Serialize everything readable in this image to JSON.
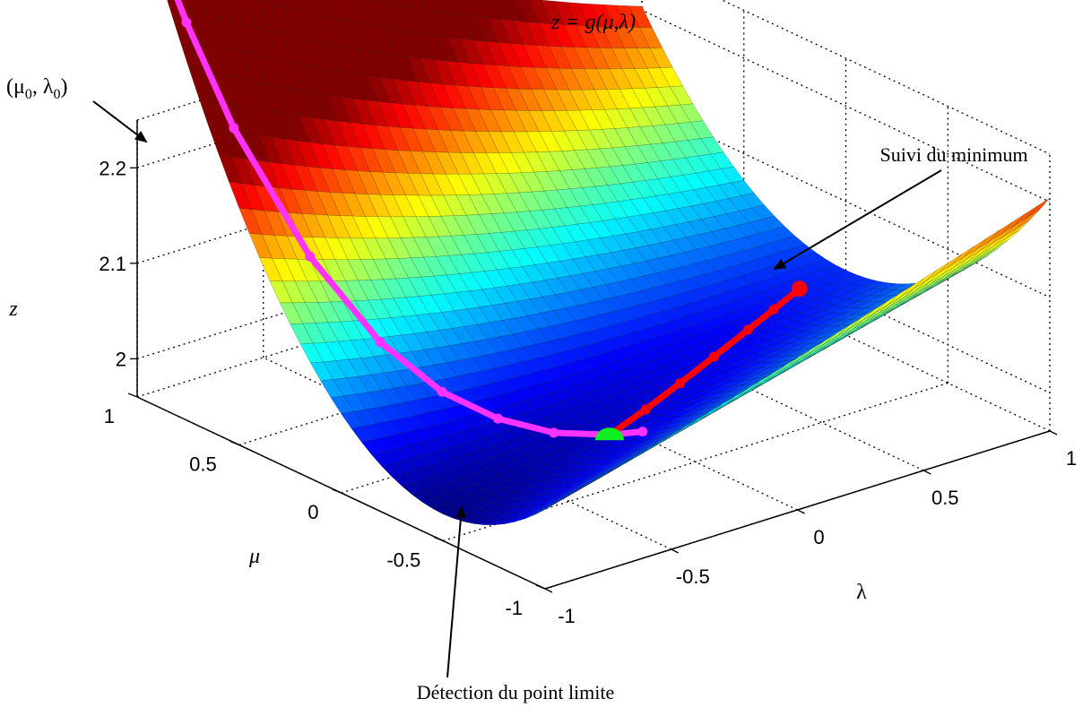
{
  "chart_data": {
    "type": "surface",
    "title": "z = g(μ,λ)",
    "xlabel": "λ",
    "ylabel": "μ",
    "zlabel": "z",
    "xlim": [
      -1,
      1
    ],
    "ylim": [
      -1,
      1
    ],
    "zlim": [
      1.96,
      2.25
    ],
    "x_ticks": [
      "-1",
      "-0.5",
      "0",
      "0.5",
      "1"
    ],
    "y_ticks": [
      "-1",
      "-0.5",
      "0",
      "0.5",
      "1"
    ],
    "z_ticks": [
      "2",
      "2.1",
      "2.2"
    ],
    "grid": true,
    "colormap": "jet",
    "series": [
      {
        "name": "",
        "color": "#ff33ff",
        "lambda": [
          -1.0,
          -0.95,
          -0.9,
          -0.8,
          -0.7,
          -0.6,
          -0.5,
          -0.4,
          -0.3,
          -0.25
        ],
        "mu": [
          1.0,
          0.82,
          0.65,
          0.4,
          0.18,
          0.0,
          -0.15,
          -0.3,
          -0.45,
          -0.55
        ]
      },
      {
        "name": "",
        "color": "#ff0000",
        "lambda": [
          -0.3,
          -0.1,
          0.1,
          0.3,
          0.5,
          0.65,
          0.8
        ],
        "mu": [
          -0.45,
          -0.38,
          -0.3,
          -0.22,
          -0.14,
          -0.08,
          -0.02
        ]
      }
    ],
    "annotations": [
      {
        "name": "start-point",
        "label_base": "(μ",
        "label_sub1": "0",
        "label_mid": ", λ",
        "label_sub2": "0",
        "label_end": ")"
      },
      {
        "name": "minimum-tracking",
        "text": "Suivi du minimum"
      },
      {
        "name": "limit-point",
        "text": "Détection du point limite"
      }
    ]
  }
}
